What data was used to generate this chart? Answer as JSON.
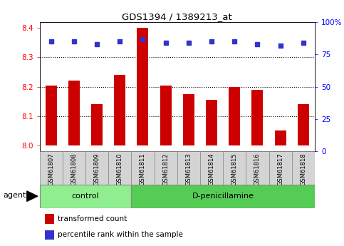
{
  "title": "GDS1394 / 1389213_at",
  "samples": [
    "GSM61807",
    "GSM61808",
    "GSM61809",
    "GSM61810",
    "GSM61811",
    "GSM61812",
    "GSM61813",
    "GSM61814",
    "GSM61815",
    "GSM61816",
    "GSM61817",
    "GSM61818"
  ],
  "red_values": [
    8.205,
    8.22,
    8.14,
    8.24,
    8.4,
    8.205,
    8.175,
    8.155,
    8.2,
    8.19,
    8.05,
    8.14
  ],
  "blue_values": [
    85,
    85,
    83,
    85,
    87,
    84,
    84,
    85,
    85,
    83,
    82,
    84
  ],
  "ylim_left": [
    7.98,
    8.42
  ],
  "ylim_right": [
    0,
    100
  ],
  "yticks_left": [
    8.0,
    8.1,
    8.2,
    8.3,
    8.4
  ],
  "yticks_right": [
    0,
    25,
    50,
    75,
    100
  ],
  "ytick_labels_right": [
    "0",
    "25",
    "50",
    "75",
    "100%"
  ],
  "control_samples": 4,
  "control_label": "control",
  "treatment_label": "D-penicillamine",
  "agent_label": "agent",
  "legend_red": "transformed count",
  "legend_blue": "percentile rank within the sample",
  "bar_color": "#cc0000",
  "dot_color": "#3333cc",
  "control_bg": "#90ee90",
  "treatment_bg": "#55cc55",
  "tick_bg": "#d4d4d4",
  "bar_width": 0.5,
  "baseline": 8.0,
  "grid_yticks": [
    8.1,
    8.2,
    8.3
  ]
}
